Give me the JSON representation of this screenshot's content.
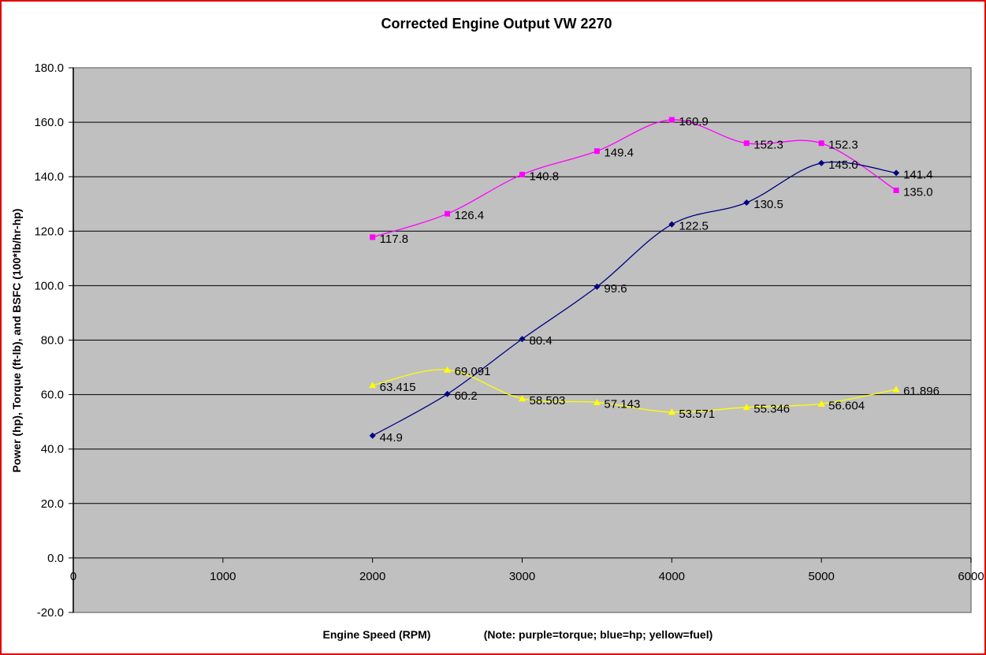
{
  "chart_data": {
    "type": "line",
    "title": "Corrected Engine Output VW 2270",
    "xlabel": "Engine Speed (RPM)",
    "xlabel_note": "(Note: purple=torque; blue=hp; yellow=fuel)",
    "ylabel": "Power (hp), Torque (ft-lb), and BSFC (100*lb/hr-hp)",
    "xlim": [
      0,
      6000
    ],
    "ylim": [
      -20,
      180
    ],
    "x_ticks": [
      "0",
      "1000",
      "2000",
      "3000",
      "4000",
      "5000",
      "6000"
    ],
    "y_ticks": [
      "-20.0",
      "0.0",
      "20.0",
      "40.0",
      "60.0",
      "80.0",
      "100.0",
      "120.0",
      "140.0",
      "160.0",
      "180.0"
    ],
    "grid": "horizontal",
    "smoothed": true,
    "plot_background": "#c0c0c0",
    "x": [
      2000,
      2500,
      3000,
      3500,
      4000,
      4500,
      5000,
      5500
    ],
    "series": [
      {
        "key": "torque",
        "color": "#ff00ff",
        "marker": "square",
        "values": [
          117.8,
          126.4,
          140.8,
          149.4,
          160.9,
          152.3,
          152.3,
          135.0
        ],
        "labels": [
          "117.8",
          "126.4",
          "140.8",
          "149.4",
          "160.9",
          "152.3",
          "152.3",
          "135.0"
        ]
      },
      {
        "key": "hp",
        "color": "#000080",
        "marker": "diamond",
        "values": [
          44.9,
          60.2,
          80.4,
          99.6,
          122.5,
          130.5,
          145.0,
          141.4
        ],
        "labels": [
          "44.9",
          "60.2",
          "80.4",
          "99.6",
          "122.5",
          "130.5",
          "145.0",
          "141.4"
        ]
      },
      {
        "key": "fuel",
        "color": "#ffff00",
        "marker": "triangle",
        "values": [
          63.415,
          69.091,
          58.503,
          57.143,
          53.571,
          55.346,
          56.604,
          61.896
        ],
        "labels": [
          "63.415",
          "69.091",
          "58.503",
          "57.143",
          "53.571",
          "55.346",
          "56.604",
          "61.896"
        ]
      }
    ]
  }
}
